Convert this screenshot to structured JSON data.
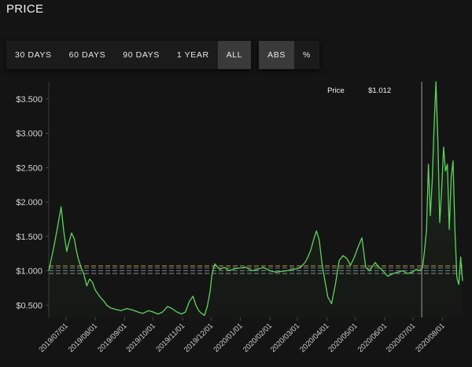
{
  "title": "PRICE",
  "range_buttons": [
    {
      "label": "30 DAYS",
      "active": false
    },
    {
      "label": "60 DAYS",
      "active": false
    },
    {
      "label": "90 DAYS",
      "active": false
    },
    {
      "label": "1 YEAR",
      "active": false
    },
    {
      "label": "ALL",
      "active": true
    }
  ],
  "mode_buttons": [
    {
      "label": "ABS",
      "active": true
    },
    {
      "label": "%",
      "active": false
    }
  ],
  "tooltip": {
    "label": "Price",
    "value": "$1.012",
    "date": "2020-07-10"
  },
  "colors": {
    "line": "#5ed35e",
    "background": "#141414",
    "crosshair": "#9a9a9a"
  },
  "chart_data": {
    "type": "line",
    "y_tick_labels": [
      "$0.500",
      "$1.000",
      "$1.500",
      "$2.000",
      "$2.500",
      "$3.000",
      "$3.500"
    ],
    "y_tick_values": [
      0.5,
      1.0,
      1.5,
      2.0,
      2.5,
      3.0,
      3.5
    ],
    "ylim": [
      0.32,
      3.75
    ],
    "x_tick_labels": [
      "2019/07/01",
      "2019/08/01",
      "2019/09/01",
      "2019/10/01",
      "2019/11/01",
      "2019/12/01",
      "2020/01/01",
      "2020/02/01",
      "2020/03/01",
      "2020/04/01",
      "2020/05/01",
      "2020/06/01",
      "2020/07/01",
      "2020/08/01"
    ],
    "x_tick_dates": [
      "2019-07-01",
      "2019-08-01",
      "2019-09-01",
      "2019-10-01",
      "2019-11-01",
      "2019-12-01",
      "2020-01-01",
      "2020-02-01",
      "2020-03-01",
      "2020-04-01",
      "2020-05-01",
      "2020-06-01",
      "2020-07-01",
      "2020-08-01"
    ],
    "xlim": [
      "2019-06-13",
      "2020-08-22"
    ],
    "reference_lines": [
      {
        "value": 1.07,
        "color": "#d8b24a"
      },
      {
        "value": 1.04,
        "color": "#8c8c8c"
      },
      {
        "value": 1.0,
        "color": "#7a8fa8"
      },
      {
        "value": 0.96,
        "color": "#a0a0a0"
      }
    ],
    "series": [
      {
        "x": [
          "2019-06-13",
          "2019-06-18",
          "2019-06-22",
          "2019-06-26",
          "2019-06-29",
          "2019-07-02",
          "2019-07-04",
          "2019-07-07",
          "2019-07-10",
          "2019-07-12",
          "2019-07-14",
          "2019-07-17",
          "2019-07-20",
          "2019-07-23",
          "2019-07-26",
          "2019-07-29",
          "2019-08-01",
          "2019-08-04",
          "2019-08-07",
          "2019-08-10",
          "2019-08-13",
          "2019-08-17",
          "2019-08-22",
          "2019-08-28",
          "2019-09-03",
          "2019-09-09",
          "2019-09-15",
          "2019-09-20",
          "2019-09-26",
          "2019-10-01",
          "2019-10-06",
          "2019-10-11",
          "2019-10-16",
          "2019-10-21",
          "2019-10-26",
          "2019-10-31",
          "2019-11-04",
          "2019-11-08",
          "2019-11-12",
          "2019-11-15",
          "2019-11-18",
          "2019-11-21",
          "2019-11-24",
          "2019-11-27",
          "2019-11-30",
          "2019-12-02",
          "2019-12-05",
          "2019-12-10",
          "2019-12-15",
          "2019-12-20",
          "2019-12-26",
          "2020-01-01",
          "2020-01-07",
          "2020-01-13",
          "2020-01-19",
          "2020-01-25",
          "2020-02-01",
          "2020-02-07",
          "2020-02-13",
          "2020-02-19",
          "2020-02-25",
          "2020-03-01",
          "2020-03-05",
          "2020-03-09",
          "2020-03-12",
          "2020-03-15",
          "2020-03-18",
          "2020-03-21",
          "2020-03-24",
          "2020-03-27",
          "2020-03-30",
          "2020-04-02",
          "2020-04-06",
          "2020-04-10",
          "2020-04-14",
          "2020-04-18",
          "2020-04-22",
          "2020-04-26",
          "2020-04-30",
          "2020-05-04",
          "2020-05-08",
          "2020-05-12",
          "2020-05-16",
          "2020-05-19",
          "2020-05-22",
          "2020-05-26",
          "2020-05-30",
          "2020-06-04",
          "2020-06-10",
          "2020-06-15",
          "2020-06-20",
          "2020-06-25",
          "2020-06-30",
          "2020-07-04",
          "2020-07-08",
          "2020-07-11",
          "2020-07-13",
          "2020-07-15",
          "2020-07-17",
          "2020-07-19",
          "2020-07-21",
          "2020-07-23",
          "2020-07-25",
          "2020-07-27",
          "2020-07-29",
          "2020-07-31",
          "2020-08-02",
          "2020-08-04",
          "2020-08-06",
          "2020-08-08",
          "2020-08-10",
          "2020-08-12",
          "2020-08-14",
          "2020-08-16",
          "2020-08-18",
          "2020-08-20",
          "2020-08-22"
        ],
        "values": [
          1.0,
          1.32,
          1.62,
          1.93,
          1.55,
          1.28,
          1.4,
          1.55,
          1.46,
          1.3,
          1.18,
          1.05,
          0.95,
          0.78,
          0.88,
          0.83,
          0.72,
          0.66,
          0.6,
          0.56,
          0.5,
          0.46,
          0.44,
          0.42,
          0.45,
          0.43,
          0.4,
          0.38,
          0.42,
          0.4,
          0.37,
          0.4,
          0.48,
          0.45,
          0.4,
          0.37,
          0.4,
          0.55,
          0.63,
          0.5,
          0.42,
          0.38,
          0.35,
          0.48,
          0.7,
          0.95,
          1.1,
          1.02,
          1.05,
          1.0,
          1.03,
          1.04,
          1.05,
          1.0,
          1.02,
          1.05,
          1.0,
          0.98,
          0.99,
          1.0,
          1.02,
          1.03,
          1.06,
          1.12,
          1.2,
          1.3,
          1.45,
          1.58,
          1.45,
          1.1,
          0.85,
          0.62,
          0.52,
          0.8,
          1.15,
          1.22,
          1.18,
          1.08,
          1.2,
          1.35,
          1.48,
          1.05,
          1.0,
          1.06,
          1.12,
          1.05,
          1.0,
          0.92,
          0.96,
          0.98,
          1.0,
          0.96,
          0.98,
          1.02,
          1.0,
          1.05,
          1.3,
          1.6,
          2.55,
          1.8,
          2.3,
          3.1,
          3.75,
          2.9,
          1.7,
          2.2,
          2.8,
          2.45,
          2.55,
          1.6,
          2.35,
          2.6,
          1.6,
          0.9,
          0.8,
          1.2,
          0.85
        ]
      }
    ]
  }
}
